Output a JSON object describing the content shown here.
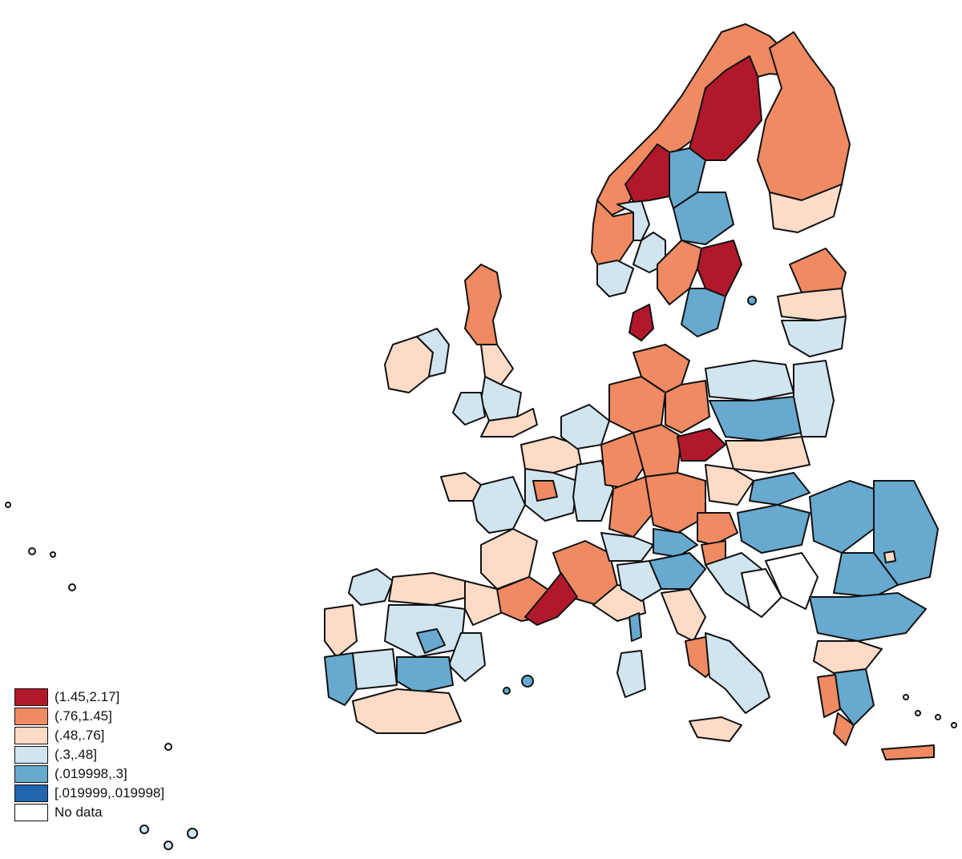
{
  "map": {
    "colors": {
      "c1": "#b2182b",
      "c2": "#ef8a62",
      "c3": "#fddbc7",
      "c4": "#d1e5f0",
      "c5": "#67a9cf",
      "c6": "#2166ac",
      "nodata": "#ffffff"
    }
  },
  "legend": {
    "items": [
      {
        "label": "(1.45,2.17]",
        "color": "#b2182b"
      },
      {
        "label": "(.76,1.45]",
        "color": "#ef8a62"
      },
      {
        "label": "(.48,.76]",
        "color": "#fddbc7"
      },
      {
        "label": "(.3,.48]",
        "color": "#d1e5f0"
      },
      {
        "label": "(.019998,.3]",
        "color": "#67a9cf"
      },
      {
        "label": "[.019999,.019998]",
        "color": "#2166ac"
      },
      {
        "label": "No data",
        "color": "#ffffff"
      }
    ]
  }
}
